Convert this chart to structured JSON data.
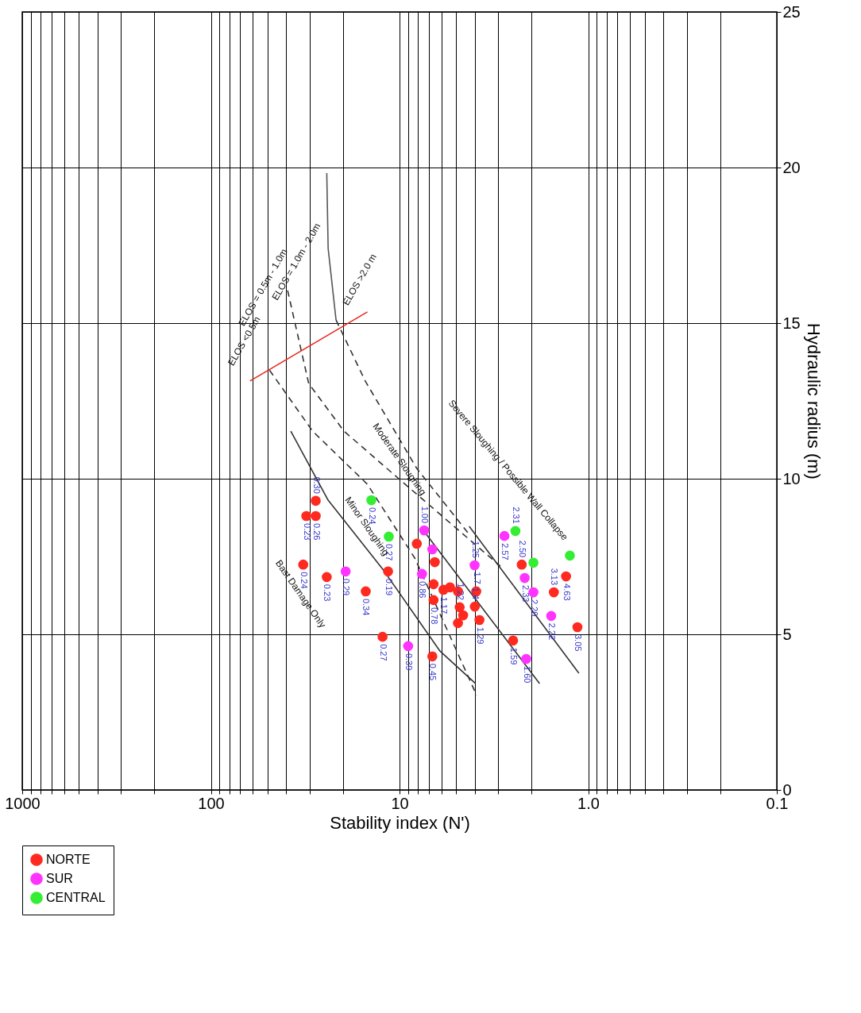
{
  "chart_data": {
    "type": "scatter",
    "xlabel": "Stability index (N')",
    "ylabel": "Hydraulic radius (m)",
    "xlim": [
      1000,
      0.1
    ],
    "ylim": [
      0,
      25
    ],
    "log": "x",
    "grid": true,
    "legend": "bottom left",
    "xticks": [
      {
        "value": 0.1,
        "label": "0.1"
      },
      {
        "value": 0.2,
        "label": null
      },
      {
        "value": 0.3,
        "label": null
      },
      {
        "value": 0.4,
        "label": null
      },
      {
        "value": 0.5,
        "label": null
      },
      {
        "value": 0.6,
        "label": null
      },
      {
        "value": 0.7,
        "label": null
      },
      {
        "value": 0.8,
        "label": null
      },
      {
        "value": 0.9,
        "label": null
      },
      {
        "value": 1,
        "label": "1.0"
      },
      {
        "value": 2,
        "label": null
      },
      {
        "value": 3,
        "label": null
      },
      {
        "value": 4,
        "label": null
      },
      {
        "value": 5,
        "label": null
      },
      {
        "value": 6,
        "label": null
      },
      {
        "value": 7,
        "label": null
      },
      {
        "value": 8,
        "label": null
      },
      {
        "value": 9,
        "label": null
      },
      10,
      {
        "value": 20,
        "label": null
      },
      {
        "value": 30,
        "label": null
      },
      {
        "value": 40,
        "label": null
      },
      {
        "value": 50,
        "label": null
      },
      {
        "value": 60,
        "label": null
      },
      {
        "value": 70,
        "label": null
      },
      {
        "value": 80,
        "label": null
      },
      {
        "value": 90,
        "label": null
      },
      100,
      {
        "value": 200,
        "label": null
      },
      {
        "value": 300,
        "label": null
      },
      {
        "value": 400,
        "label": null
      },
      {
        "value": 500,
        "label": null
      },
      {
        "value": 600,
        "label": null
      },
      {
        "value": 700,
        "label": null
      },
      {
        "value": 800,
        "label": null
      },
      {
        "value": 900,
        "label": null
      },
      1000
    ],
    "yticks": [
      0,
      5,
      10,
      15,
      20,
      25
    ],
    "series": [
      {
        "type": "line",
        "color": "#333333",
        "line_style": "solid",
        "x": [
          37.7,
          23.9,
          12.2,
          6.1,
          3.96
        ],
        "values": [
          11.53,
          9.31,
          7.07,
          4.46,
          3.42
        ]
      },
      {
        "type": "line",
        "color": "#333333",
        "line_style": "dashed",
        "x": [
          48.9,
          28.9,
          14.8,
          8.3,
          3.9
        ],
        "values": [
          13.49,
          11.53,
          9.82,
          7.45,
          3.04
        ]
      },
      {
        "type": "line",
        "color": "#333333",
        "line_style": "dashed",
        "x": [
          39.2,
          30.3,
          19.7,
          10.1,
          2.92
        ],
        "values": [
          16.05,
          13.06,
          11.53,
          10.0,
          7.19
        ]
      },
      {
        "type": "line",
        "color": "#555555",
        "line_style": "solid",
        "x": [
          24.3,
          23.9,
          21.7
        ],
        "values": [
          19.82,
          17.4,
          15.1
        ]
      },
      {
        "type": "line",
        "color": "#333333",
        "line_style": "dashed",
        "x": [
          21.7,
          15.2,
          8.1,
          4.27
        ],
        "values": [
          15.1,
          13.14,
          10.33,
          8.21
        ]
      },
      {
        "type": "line",
        "color": "#333333",
        "line_style": "solid",
        "x": [
          7.2,
          1.81
        ],
        "values": [
          8.21,
          3.42
        ]
      },
      {
        "type": "line",
        "color": "#333333",
        "line_style": "solid",
        "x": [
          4.27,
          1.12
        ],
        "values": [
          8.47,
          3.75
        ]
      },
      {
        "type": "line",
        "color": "#e8281e",
        "line_style": "solid",
        "x": [
          62,
          14.8
        ],
        "values": [
          13.14,
          15.36
        ]
      },
      {
        "name": "NORTE",
        "marker": "circle",
        "color": "#ff2a1f",
        "x": [
          31.2,
          27.8,
          27.8,
          32.4,
          24.3,
          15.1,
          11.5,
          12.3,
          6.7,
          8.1,
          6.5,
          6.6,
          6.6,
          5.85,
          5.4,
          4.9,
          4.8,
          4.6,
          4.9,
          3.92,
          3.99,
          3.77,
          2.25,
          1.52,
          1.31,
          1.14,
          2.5
        ],
        "values": [
          8.8,
          9.29,
          8.8,
          7.24,
          6.84,
          6.38,
          7.02,
          4.92,
          4.29,
          7.91,
          7.32,
          6.1,
          6.61,
          6.43,
          6.51,
          6.38,
          5.87,
          5.61,
          5.36,
          6.38,
          5.89,
          5.46,
          7.24,
          6.35,
          6.86,
          5.23,
          4.8
        ]
      },
      {
        "name": "SUR",
        "marker": "circle",
        "color": "#ff33ff",
        "x": [
          7.4,
          6.7,
          7.6,
          19.3,
          9.0,
          2.78,
          2.17,
          1.95,
          1.57,
          2.13,
          4.0
        ],
        "values": [
          8.34,
          7.73,
          6.94,
          7.02,
          4.62,
          8.16,
          6.81,
          6.35,
          5.59,
          4.21,
          7.22
        ]
      },
      {
        "name": "CENTRAL",
        "marker": "circle",
        "color": "#33ee33",
        "x": [
          14.1,
          11.4,
          2.43,
          1.95,
          1.25
        ],
        "values": [
          9.31,
          8.14,
          8.32,
          7.3,
          7.53
        ]
      }
    ],
    "annotations": [
      {
        "text": "0.23",
        "x": 31.2,
        "y": 8.8
      },
      {
        "text": "0.30",
        "x": 27.8,
        "y": 9.29
      },
      {
        "text": "0.26",
        "x": 27.8,
        "y": 8.8
      },
      {
        "text": "0.24",
        "x": 32.4,
        "y": 7.24
      },
      {
        "text": "0.23",
        "x": 24.3,
        "y": 6.84
      },
      {
        "text": "0.34",
        "x": 15.1,
        "y": 6.38
      },
      {
        "text": "0.19",
        "x": 11.5,
        "y": 7.02
      },
      {
        "text": "0.27",
        "x": 12.3,
        "y": 4.92
      },
      {
        "text": "0.45",
        "x": 6.7,
        "y": 4.29
      },
      {
        "text": "0.78",
        "x": 6.6,
        "y": 6.1
      },
      {
        "text": "1.17",
        "x": 5.85,
        "y": 6.43
      },
      {
        "text": "1.22",
        "x": 4.8,
        "y": 5.87
      },
      {
        "text": "1.7",
        "x": 3.92,
        "y": 6.38
      },
      {
        "text": "1.4",
        "x": 3.99,
        "y": 5.89
      },
      {
        "text": "1.29",
        "x": 3.77,
        "y": 5.46
      },
      {
        "text": "2.50",
        "x": 2.25,
        "y": 7.24
      },
      {
        "text": "3.13",
        "x": 1.52,
        "y": 6.35
      },
      {
        "text": "4.63",
        "x": 1.31,
        "y": 6.86
      },
      {
        "text": "3.05",
        "x": 1.14,
        "y": 5.23
      },
      {
        "text": "1.59",
        "x": 2.5,
        "y": 4.8
      },
      {
        "text": "1.00",
        "x": 7.4,
        "y": 8.34
      },
      {
        "text": "0.86",
        "x": 7.6,
        "y": 6.94
      },
      {
        "text": "0.29",
        "x": 19.3,
        "y": 7.02
      },
      {
        "text": "0.39",
        "x": 9.0,
        "y": 4.62
      },
      {
        "text": "2.57",
        "x": 2.78,
        "y": 8.16
      },
      {
        "text": "2.33",
        "x": 2.17,
        "y": 6.81
      },
      {
        "text": "2.20",
        "x": 1.95,
        "y": 6.35
      },
      {
        "text": "2.22",
        "x": 1.57,
        "y": 5.59
      },
      {
        "text": "1.60",
        "x": 2.13,
        "y": 4.21
      },
      {
        "text": "1.25",
        "x": 4.0,
        "y": 7.22
      },
      {
        "text": "0.24",
        "x": 14.1,
        "y": 9.31
      },
      {
        "text": "0.27",
        "x": 11.4,
        "y": 8.14
      },
      {
        "text": "2.31",
        "x": 2.43,
        "y": 8.32
      },
      "Bast Damage Only",
      "Minor Sloughing",
      "Moderate Sloughing",
      "Severe Sloughing / Possible Wall Collapse",
      "ELOS <0.5m",
      "ELOS = 0.5m - 1.0m",
      "ELOS = 1.0m - 2.0m",
      "ELOS >2.0 m"
    ]
  }
}
